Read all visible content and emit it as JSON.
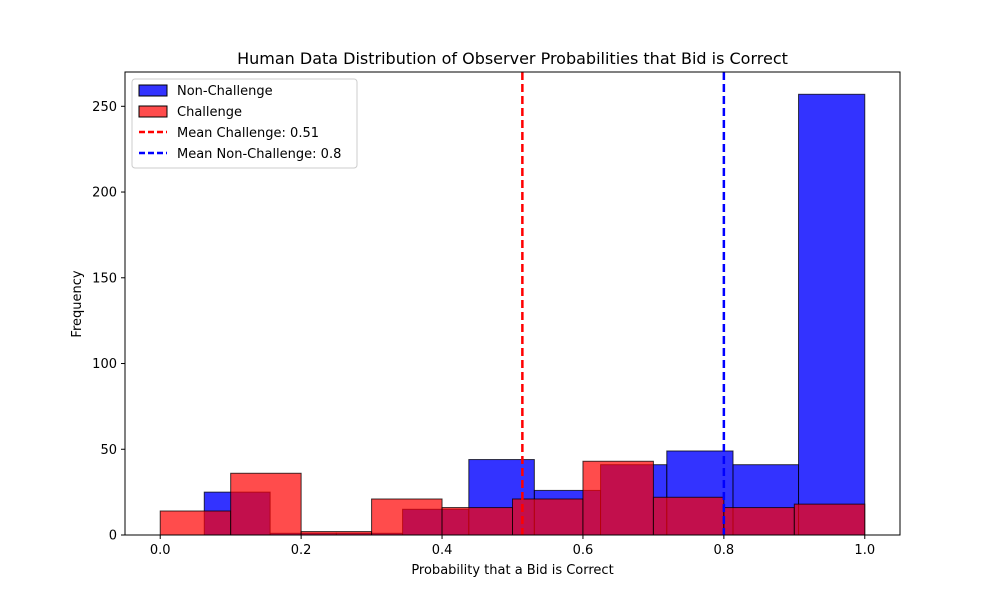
{
  "chart_data": {
    "type": "bar",
    "title": "Human Data Distribution of Observer Probabilities that Bid is Correct",
    "xlabel": "Probability that a Bid is Correct",
    "ylabel": "Frequency",
    "xlim": [
      -0.05,
      1.05
    ],
    "ylim": [
      0,
      270
    ],
    "xticks": [
      0.0,
      0.2,
      0.4,
      0.6,
      0.8,
      1.0
    ],
    "xtick_labels": [
      "0.0",
      "0.2",
      "0.4",
      "0.6",
      "0.8",
      "1.0"
    ],
    "yticks": [
      0,
      50,
      100,
      150,
      200,
      250
    ],
    "ytick_labels": [
      "0",
      "50",
      "100",
      "150",
      "200",
      "250"
    ],
    "grid": false,
    "legend_position": "top-left",
    "series": [
      {
        "name": "Non-Challenge",
        "color": "#0000ff",
        "alpha": 0.8,
        "bins": [
          {
            "x0": 0.0625,
            "x1": 0.156,
            "value": 25
          },
          {
            "x0": 0.156,
            "x1": 0.25,
            "value": 1
          },
          {
            "x0": 0.25,
            "x1": 0.344,
            "value": 1
          },
          {
            "x0": 0.344,
            "x1": 0.438,
            "value": 15
          },
          {
            "x0": 0.438,
            "x1": 0.531,
            "value": 44
          },
          {
            "x0": 0.531,
            "x1": 0.625,
            "value": 26
          },
          {
            "x0": 0.625,
            "x1": 0.719,
            "value": 41
          },
          {
            "x0": 0.719,
            "x1": 0.813,
            "value": 49
          },
          {
            "x0": 0.813,
            "x1": 0.906,
            "value": 41
          },
          {
            "x0": 0.906,
            "x1": 1.0,
            "value": 257
          }
        ]
      },
      {
        "name": "Challenge",
        "color": "#ff0000",
        "alpha": 0.7,
        "bins": [
          {
            "x0": 0.0,
            "x1": 0.1,
            "value": 14
          },
          {
            "x0": 0.1,
            "x1": 0.2,
            "value": 36
          },
          {
            "x0": 0.2,
            "x1": 0.3,
            "value": 2
          },
          {
            "x0": 0.3,
            "x1": 0.4,
            "value": 21
          },
          {
            "x0": 0.4,
            "x1": 0.5,
            "value": 16
          },
          {
            "x0": 0.5,
            "x1": 0.6,
            "value": 21
          },
          {
            "x0": 0.6,
            "x1": 0.7,
            "value": 43
          },
          {
            "x0": 0.7,
            "x1": 0.8,
            "value": 22
          },
          {
            "x0": 0.8,
            "x1": 0.9,
            "value": 16
          },
          {
            "x0": 0.9,
            "x1": 1.0,
            "value": 18
          }
        ]
      }
    ],
    "reference_lines": [
      {
        "name": "Mean Challenge: 0.51",
        "x": 0.514,
        "color": "#ff0000"
      },
      {
        "name": "Mean Non-Challenge: 0.8",
        "x": 0.8,
        "color": "#0000ff"
      }
    ]
  }
}
